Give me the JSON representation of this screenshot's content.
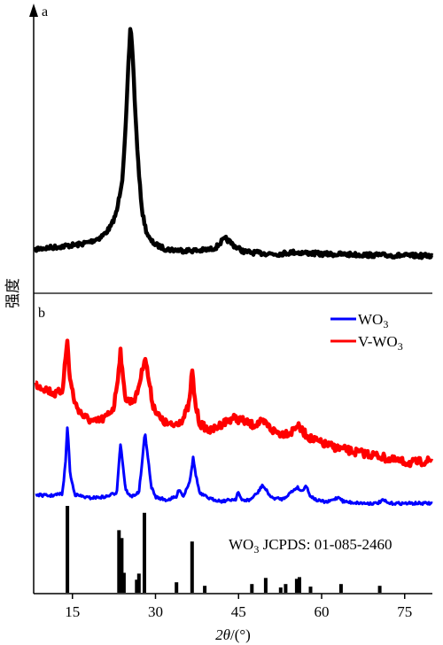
{
  "chart_data": {
    "type": "line",
    "xlabel_parts": {
      "symbol": "2θ",
      "unit": "/(°)"
    },
    "ylabel": "强度",
    "xlim": [
      8,
      80
    ],
    "xticks": [
      15,
      30,
      45,
      60,
      75
    ],
    "panels": [
      {
        "label": "a",
        "series": [
          {
            "name": "",
            "color": "#000000",
            "x": [
              8,
              12,
              16,
              18,
              20,
              21,
              22,
              23,
              24,
              24.6,
              25.1,
              25.5,
              25.9,
              26.4,
              27,
              27.6,
              28.3,
              29,
              30,
              32,
              35,
              38,
              40,
              41,
              42,
              42.7,
              43.5,
              44.5,
              46,
              48,
              52,
              55,
              60,
              65,
              70,
              75,
              80
            ],
            "values": [
              0.04,
              0.05,
              0.06,
              0.07,
              0.09,
              0.11,
              0.14,
              0.2,
              0.34,
              0.55,
              0.82,
              1.0,
              0.86,
              0.6,
              0.36,
              0.2,
              0.12,
              0.08,
              0.06,
              0.04,
              0.035,
              0.035,
              0.04,
              0.05,
              0.075,
              0.085,
              0.07,
              0.05,
              0.03,
              0.025,
              0.02,
              0.028,
              0.02,
              0.018,
              0.015,
              0.013,
              0.012
            ]
          }
        ]
      },
      {
        "label": "b",
        "legend_position": "top-right",
        "series": [
          {
            "name_parts": {
              "prefix": "WO",
              "sub": "3"
            },
            "color": "#0000ff",
            "x": [
              8,
              11,
              13.2,
              13.8,
              14.1,
              14.6,
              15.5,
              18,
              21,
              23,
              23.3,
              23.7,
              24.1,
              24.6,
              25.5,
              27,
              27.6,
              28.1,
              28.6,
              29.2,
              30,
              32,
              33.8,
              34.3,
              35,
              36.2,
              36.8,
              37.3,
              38,
              40,
              42,
              44.5,
              44.9,
              45.5,
              47,
              48.5,
              49.3,
              50,
              51,
              53,
              55.6,
              56.4,
              57.2,
              57.8,
              59,
              61,
              63.2,
              63.8,
              65,
              68,
              70,
              71.2,
              72,
              75,
              78,
              80
            ],
            "values": [
              0.12,
              0.11,
              0.13,
              0.45,
              0.77,
              0.3,
              0.12,
              0.09,
              0.1,
              0.14,
              0.35,
              0.6,
              0.4,
              0.17,
              0.1,
              0.14,
              0.42,
              0.7,
              0.48,
              0.2,
              0.1,
              0.07,
              0.1,
              0.18,
              0.1,
              0.25,
              0.46,
              0.3,
              0.13,
              0.08,
              0.06,
              0.08,
              0.15,
              0.07,
              0.07,
              0.14,
              0.21,
              0.16,
              0.09,
              0.08,
              0.19,
              0.15,
              0.21,
              0.12,
              0.07,
              0.05,
              0.1,
              0.06,
              0.05,
              0.04,
              0.04,
              0.07,
              0.04,
              0.04,
              0.04,
              0.04
            ]
          },
          {
            "name_parts": {
              "prefix": "V-WO",
              "sub": "3"
            },
            "color": "#ff0000",
            "x": [
              8,
              10,
              12,
              13.2,
              13.8,
              14.1,
              14.5,
              15.5,
              17,
              19,
              21,
              22.5,
              23.2,
              23.7,
              24.1,
              24.7,
              25.5,
              26.5,
              27.5,
              28.1,
              28.7,
              29.5,
              31,
              33,
              35,
              36.1,
              36.6,
              37.2,
              38,
              40,
              42,
              44,
              46,
              47.5,
              49,
              50,
              51,
              52.5,
              54.5,
              55.5,
              56.5,
              58,
              60,
              63,
              66,
              70,
              73,
              76,
              78,
              80
            ],
            "values": [
              0.77,
              0.73,
              0.68,
              0.72,
              1.0,
              1.12,
              0.82,
              0.6,
              0.5,
              0.45,
              0.49,
              0.58,
              0.82,
              1.05,
              0.8,
              0.64,
              0.62,
              0.66,
              0.85,
              1.0,
              0.82,
              0.6,
              0.47,
              0.42,
              0.48,
              0.6,
              0.88,
              0.6,
              0.44,
              0.38,
              0.44,
              0.49,
              0.46,
              0.43,
              0.45,
              0.44,
              0.39,
              0.36,
              0.37,
              0.43,
              0.38,
              0.32,
              0.28,
              0.24,
              0.21,
              0.18,
              0.14,
              0.12,
              0.13,
              0.14
            ]
          }
        ],
        "reference": {
          "label_parts": {
            "prefix": "WO",
            "sub": "3",
            "suffix": " JCPDS: 01-085-2460"
          },
          "color": "#000000",
          "x": [
            14.1,
            23.4,
            23.9,
            24.3,
            26.6,
            27.0,
            28.0,
            33.8,
            36.6,
            38.9,
            47.4,
            49.9,
            52.6,
            53.5,
            55.5,
            56.0,
            58.0,
            63.5,
            70.5
          ],
          "values": [
            1.0,
            0.72,
            0.63,
            0.23,
            0.15,
            0.22,
            0.92,
            0.12,
            0.59,
            0.08,
            0.1,
            0.17,
            0.06,
            0.1,
            0.16,
            0.18,
            0.07,
            0.1,
            0.08
          ]
        }
      }
    ]
  }
}
